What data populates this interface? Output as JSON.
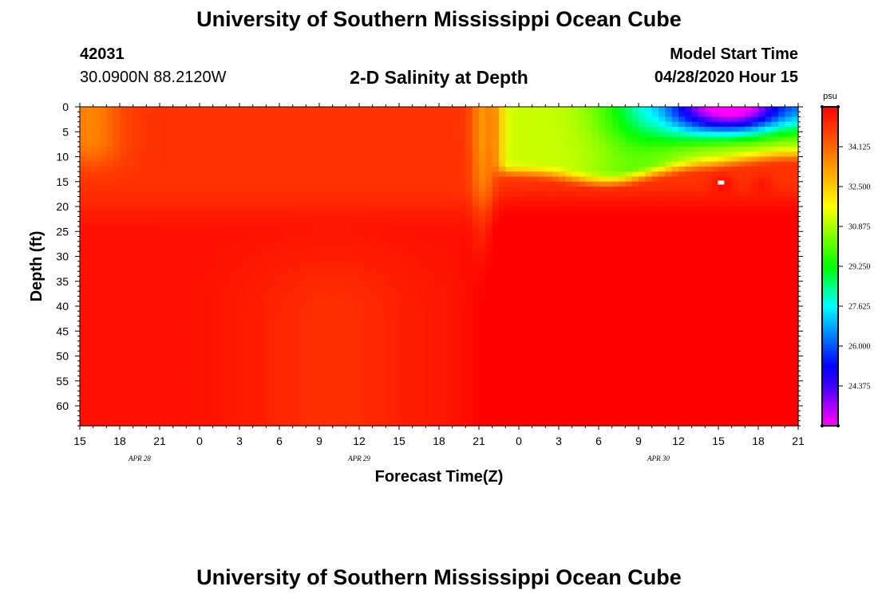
{
  "header": {
    "title": "University of Southern Mississippi Ocean Cube",
    "station_id": "42031",
    "coords": "30.0900N 88.2120W",
    "plot_title": "2-D Salinity at Depth",
    "model_start_label": "Model Start Time",
    "model_start_value": "04/28/2020 Hour 15"
  },
  "footer": {
    "title": "University of Southern Mississippi Ocean Cube"
  },
  "chart_data": {
    "type": "heatmap",
    "title": "2-D Salinity at Depth",
    "xlabel": "Forecast Time(Z)",
    "ylabel": "Depth (ft)",
    "x_unit": "hours since 04/28 15Z",
    "xlim": [
      0,
      54
    ],
    "ylim": [
      0,
      64
    ],
    "x_ticks": [
      {
        "hour": 0,
        "label": "15"
      },
      {
        "hour": 3,
        "label": "18"
      },
      {
        "hour": 6,
        "label": "21"
      },
      {
        "hour": 9,
        "label": "0"
      },
      {
        "hour": 12,
        "label": "3"
      },
      {
        "hour": 15,
        "label": "6"
      },
      {
        "hour": 18,
        "label": "9"
      },
      {
        "hour": 21,
        "label": "12"
      },
      {
        "hour": 24,
        "label": "15"
      },
      {
        "hour": 27,
        "label": "18"
      },
      {
        "hour": 30,
        "label": "21"
      },
      {
        "hour": 33,
        "label": "0"
      },
      {
        "hour": 36,
        "label": "3"
      },
      {
        "hour": 39,
        "label": "6"
      },
      {
        "hour": 42,
        "label": "9"
      },
      {
        "hour": 45,
        "label": "12"
      },
      {
        "hour": 48,
        "label": "15"
      },
      {
        "hour": 51,
        "label": "18"
      },
      {
        "hour": 54,
        "label": "21"
      }
    ],
    "month_labels": [
      {
        "hour": 4.5,
        "label": "APR 28"
      },
      {
        "hour": 21,
        "label": "APR 29"
      },
      {
        "hour": 43.5,
        "label": "APR 30"
      }
    ],
    "y_ticks": [
      "0",
      "5",
      "10",
      "15",
      "20",
      "25",
      "30",
      "35",
      "40",
      "45",
      "50",
      "55",
      "60"
    ],
    "colorbar": {
      "unit": "psu",
      "min": 22.75,
      "max": 35.75,
      "labels": [
        "34.125",
        "32.500",
        "30.875",
        "29.250",
        "27.625",
        "26.000",
        "24.375"
      ],
      "colors": [
        "#ff00ff",
        "#aa00ff",
        "#3f00ff",
        "#0000ff",
        "#0055ff",
        "#00aaff",
        "#00ffff",
        "#00ff80",
        "#00ff00",
        "#55ff00",
        "#aaff00",
        "#ffff00",
        "#ffcc00",
        "#ff9900",
        "#ff6600",
        "#ff3300",
        "#ff0000"
      ]
    },
    "data_summary": {
      "background_psu": 35.1,
      "hours_0_to_30_surface_psu": 34.5,
      "hours_31_to_54_surface_psu": 31.0,
      "freshest_surface_psu": 23.5,
      "freshest_time_hour": 47,
      "deep_red_psu": 35.6
    }
  }
}
